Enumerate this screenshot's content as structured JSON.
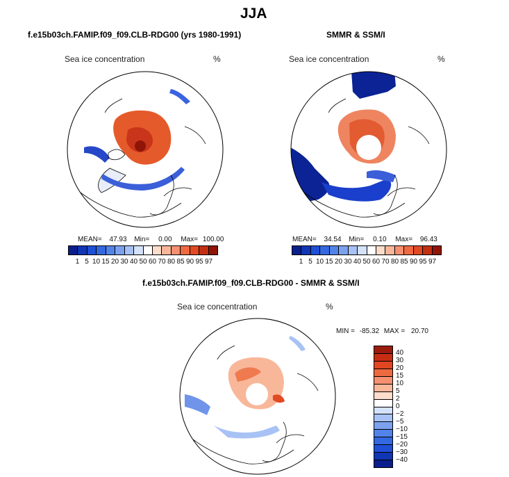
{
  "figure": {
    "title": "JJA"
  },
  "panels": [
    {
      "id": "model",
      "header": "f.e15b03ch.FAMIP.f09_f09.CLB-RDG00 (yrs 1980-1991)",
      "field_label": "Sea ice concentration",
      "units": "%",
      "stats": {
        "mean_label": "MEAN=",
        "mean": "47.93",
        "min_label": "Min=",
        "min": "0.00",
        "max_label": "Max=",
        "max": "100.00"
      }
    },
    {
      "id": "obs",
      "header": "SMMR & SSM/I",
      "field_label": "Sea ice concentration",
      "units": "%",
      "stats": {
        "mean_label": "MEAN=",
        "mean": "34.54",
        "min_label": "Min=",
        "min": "0.10",
        "max_label": "Max=",
        "max": "96.43"
      }
    },
    {
      "id": "diff",
      "header": "f.e15b03ch.FAMIP.f09_f09.CLB-RDG00 - SMMR & SSM/I",
      "field_label": "Sea ice concentration",
      "units": "%",
      "stats": {
        "min_label": "MIN =",
        "min": "-85.32",
        "max_label": "MAX =",
        "max": "20.70"
      }
    }
  ],
  "chart_data": [
    {
      "type": "heatmap",
      "projection": "north-polar-stereographic",
      "title": "f.e15b03ch.FAMIP.f09_f09.CLB-RDG00 (yrs 1980-1991)",
      "variable": "Sea ice concentration",
      "units": "%",
      "season": "JJA",
      "mean": 47.93,
      "min": 0.0,
      "max": 100.0,
      "colorbar": {
        "orientation": "horizontal",
        "levels": [
          1,
          5,
          10,
          15,
          20,
          30,
          40,
          50,
          60,
          70,
          80,
          85,
          90,
          95,
          97
        ],
        "colors": [
          "#0a1f8c",
          "#1035b5",
          "#1e4fd6",
          "#3468e0",
          "#5283e8",
          "#7ca2ef",
          "#a8c2f5",
          "#d4e2fa",
          "#ffffff",
          "#fcdccb",
          "#f9b79a",
          "#f59070",
          "#ef6a42",
          "#e14a22",
          "#c42f12",
          "#8e1508"
        ]
      }
    },
    {
      "type": "heatmap",
      "projection": "north-polar-stereographic",
      "title": "SMMR & SSM/I",
      "variable": "Sea ice concentration",
      "units": "%",
      "season": "JJA",
      "mean": 34.54,
      "min": 0.1,
      "max": 96.43,
      "colorbar": {
        "orientation": "horizontal",
        "levels": [
          1,
          5,
          10,
          15,
          20,
          30,
          40,
          50,
          60,
          70,
          80,
          85,
          90,
          95,
          97
        ],
        "colors": [
          "#0a1f8c",
          "#1035b5",
          "#1e4fd6",
          "#3468e0",
          "#5283e8",
          "#7ca2ef",
          "#a8c2f5",
          "#d4e2fa",
          "#ffffff",
          "#fcdccb",
          "#f9b79a",
          "#f59070",
          "#ef6a42",
          "#e14a22",
          "#c42f12",
          "#8e1508"
        ]
      }
    },
    {
      "type": "heatmap",
      "projection": "north-polar-stereographic",
      "title": "f.e15b03ch.FAMIP.f09_f09.CLB-RDG00 - SMMR & SSM/I",
      "variable": "Sea ice concentration difference",
      "units": "%",
      "season": "JJA",
      "min": -85.32,
      "max": 20.7,
      "colorbar": {
        "orientation": "vertical",
        "levels": [
          40,
          30,
          20,
          15,
          10,
          5,
          2,
          0,
          -2,
          -5,
          -10,
          -15,
          -20,
          -30,
          -40
        ],
        "colors": [
          "#9b1c0d",
          "#c72d12",
          "#e04622",
          "#ed6a40",
          "#f59070",
          "#f9b79a",
          "#fcdccb",
          "#ffffff",
          "#d4e2fa",
          "#a8c2f5",
          "#7ca2ef",
          "#5283e8",
          "#3468e0",
          "#1e4fd6",
          "#1035b5",
          "#0a1f8c"
        ]
      }
    }
  ]
}
